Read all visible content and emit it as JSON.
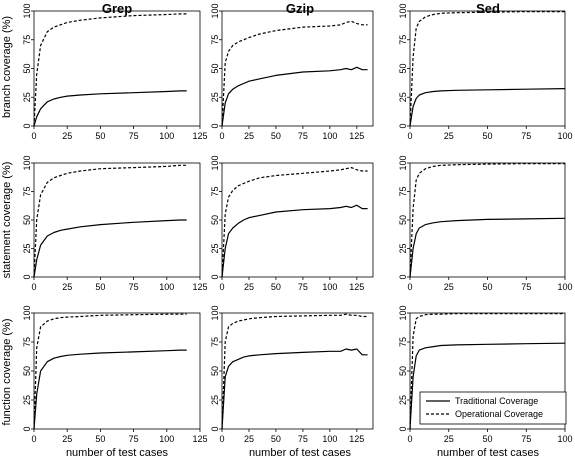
{
  "chart_data": {
    "type": "line",
    "layout": "3x3 small multiples",
    "columns": [
      {
        "title": "Grep",
        "xlim": [
          0,
          125
        ],
        "xticks": [
          "0",
          "25",
          "50",
          "75",
          "100",
          "125"
        ]
      },
      {
        "title": "Gzip",
        "xlim": [
          0,
          140
        ],
        "xticks": [
          "0",
          "25",
          "50",
          "75",
          "100",
          "125"
        ]
      },
      {
        "title": "Sed",
        "xlim": [
          0,
          100
        ],
        "xticks": [
          "0",
          "25",
          "50",
          "75",
          "100"
        ]
      }
    ],
    "rows": [
      {
        "ylabel": "branch coverage (%)"
      },
      {
        "ylabel": "statement coverage (%)"
      },
      {
        "ylabel": "function coverage (%)"
      }
    ],
    "ylim": [
      0,
      100
    ],
    "yticks": [
      "0",
      "25",
      "50",
      "75",
      "100"
    ],
    "xlabel": "number of test cases",
    "legend": {
      "position": "bottom-right (function / Sed panel)",
      "entries": [
        {
          "label": "Traditional Coverage",
          "style": "solid"
        },
        {
          "label": "Operational Coverage",
          "style": "dashed"
        }
      ]
    },
    "panels": [
      {
        "row": 0,
        "col": 0,
        "series": [
          {
            "style": "solid",
            "x": [
              0,
              2,
              5,
              10,
              15,
              20,
              25,
              35,
              50,
              75,
              100,
              110,
              115
            ],
            "y": [
              0,
              8,
              15,
              21,
              23.5,
              25,
              26,
              27,
              28,
              29,
              30,
              30.5,
              30.5
            ]
          },
          {
            "style": "dashed",
            "x": [
              0,
              2,
              5,
              10,
              15,
              20,
              25,
              35,
              50,
              75,
              100,
              110,
              115
            ],
            "y": [
              0,
              45,
              70,
              82,
              86,
              88,
              90,
              92,
              94,
              96,
              97,
              97.5,
              97.5
            ]
          }
        ]
      },
      {
        "row": 0,
        "col": 1,
        "series": [
          {
            "style": "solid",
            "x": [
              0,
              3,
              6,
              10,
              15,
              20,
              25,
              35,
              50,
              75,
              100,
              110,
              115,
              120,
              125,
              130,
              135
            ],
            "y": [
              0,
              20,
              28,
              32,
              35,
              37,
              39,
              41,
              44,
              47,
              48,
              49,
              50,
              49,
              51,
              49,
              49
            ]
          },
          {
            "style": "dashed",
            "x": [
              0,
              3,
              6,
              10,
              15,
              20,
              25,
              35,
              50,
              75,
              100,
              110,
              115,
              120,
              125,
              130,
              135
            ],
            "y": [
              0,
              55,
              65,
              70,
              73,
              75,
              77,
              80,
              83,
              86,
              87,
              88,
              90,
              91,
              89,
              88,
              88
            ]
          }
        ]
      },
      {
        "row": 0,
        "col": 2,
        "series": [
          {
            "style": "solid",
            "x": [
              0,
              2,
              4,
              6,
              10,
              15,
              20,
              30,
              50,
              75,
              100
            ],
            "y": [
              0,
              17,
              24,
              27,
              29,
              30,
              30.5,
              31,
              31.5,
              32,
              32.5
            ]
          },
          {
            "style": "dashed",
            "x": [
              0,
              2,
              4,
              6,
              10,
              15,
              20,
              30,
              50,
              75,
              100
            ],
            "y": [
              0,
              60,
              85,
              91,
              95,
              97,
              98,
              98.5,
              99,
              99.5,
              99.5
            ]
          }
        ]
      },
      {
        "row": 1,
        "col": 0,
        "series": [
          {
            "style": "solid",
            "x": [
              0,
              2,
              5,
              10,
              15,
              20,
              25,
              35,
              50,
              75,
              100,
              110,
              115
            ],
            "y": [
              0,
              15,
              28,
              36,
              39,
              41,
              42,
              44,
              46,
              48,
              49.5,
              50,
              50
            ]
          },
          {
            "style": "dashed",
            "x": [
              0,
              2,
              5,
              10,
              15,
              20,
              25,
              35,
              50,
              75,
              100,
              110,
              115
            ],
            "y": [
              0,
              50,
              72,
              83,
              87,
              89,
              91,
              93,
              95,
              96,
              97,
              98,
              98
            ]
          }
        ]
      },
      {
        "row": 1,
        "col": 1,
        "series": [
          {
            "style": "solid",
            "x": [
              0,
              3,
              6,
              10,
              15,
              20,
              25,
              35,
              50,
              75,
              100,
              110,
              115,
              120,
              125,
              130,
              135
            ],
            "y": [
              0,
              25,
              38,
              43,
              47,
              50,
              52,
              54,
              57,
              59,
              60,
              61,
              62,
              61,
              63,
              60,
              60
            ]
          },
          {
            "style": "dashed",
            "x": [
              0,
              3,
              6,
              10,
              15,
              20,
              25,
              35,
              50,
              75,
              100,
              110,
              115,
              120,
              125,
              130,
              135
            ],
            "y": [
              0,
              55,
              70,
              76,
              80,
              82,
              84,
              87,
              89,
              91,
              93,
              94,
              95,
              96,
              94,
              93,
              93
            ]
          }
        ]
      },
      {
        "row": 1,
        "col": 2,
        "series": [
          {
            "style": "solid",
            "x": [
              0,
              2,
              4,
              6,
              10,
              15,
              20,
              30,
              50,
              75,
              100
            ],
            "y": [
              0,
              25,
              38,
              43,
              46,
              47.5,
              48.5,
              49.5,
              50.5,
              51,
              51.5
            ]
          },
          {
            "style": "dashed",
            "x": [
              0,
              2,
              4,
              6,
              10,
              15,
              20,
              30,
              50,
              75,
              100
            ],
            "y": [
              0,
              60,
              85,
              91,
              95,
              97,
              98,
              98.5,
              99,
              99.5,
              99.5
            ]
          }
        ]
      },
      {
        "row": 2,
        "col": 0,
        "series": [
          {
            "style": "solid",
            "x": [
              0,
              2,
              5,
              10,
              15,
              20,
              25,
              35,
              50,
              75,
              100,
              110,
              115
            ],
            "y": [
              0,
              30,
              50,
              58,
              61,
              62.5,
              63.5,
              64.5,
              65.5,
              66.5,
              67.5,
              68,
              68
            ]
          },
          {
            "style": "dashed",
            "x": [
              0,
              2,
              5,
              10,
              15,
              20,
              25,
              35,
              50,
              75,
              100,
              110,
              115
            ],
            "y": [
              0,
              70,
              88,
              93,
              95,
              96,
              96.5,
              97,
              98,
              98.5,
              99,
              99,
              99
            ]
          }
        ]
      },
      {
        "row": 2,
        "col": 1,
        "series": [
          {
            "style": "solid",
            "x": [
              0,
              3,
              6,
              10,
              15,
              20,
              25,
              35,
              50,
              75,
              100,
              110,
              115,
              120,
              125,
              130,
              135
            ],
            "y": [
              0,
              45,
              54,
              58,
              60,
              62,
              63,
              64,
              65,
              66,
              67,
              67,
              69,
              68,
              69,
              64,
              64
            ]
          },
          {
            "style": "dashed",
            "x": [
              0,
              3,
              6,
              10,
              15,
              20,
              25,
              35,
              50,
              75,
              100,
              110,
              115,
              120,
              125,
              130,
              135
            ],
            "y": [
              0,
              75,
              88,
              91,
              93,
              94,
              95,
              96,
              97,
              97.5,
              98,
              98,
              99,
              98,
              98,
              97,
              97
            ]
          }
        ]
      },
      {
        "row": 2,
        "col": 2,
        "series": [
          {
            "style": "solid",
            "x": [
              0,
              2,
              4,
              6,
              10,
              15,
              20,
              30,
              50,
              75,
              100
            ],
            "y": [
              0,
              45,
              63,
              68,
              70,
              71,
              72,
              72.5,
              73,
              73.5,
              74
            ]
          },
          {
            "style": "dashed",
            "x": [
              0,
              2,
              4,
              6,
              10,
              15,
              20,
              30,
              50,
              75,
              100
            ],
            "y": [
              0,
              80,
              95,
              97,
              98.5,
              99,
              99,
              99.5,
              99.5,
              99.5,
              99.5
            ]
          }
        ]
      }
    ]
  }
}
